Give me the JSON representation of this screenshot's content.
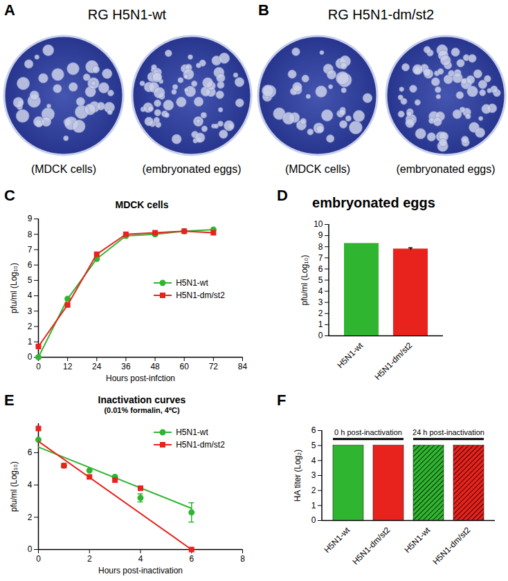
{
  "images": [
    {
      "panel": "A",
      "title": "RG H5N1-wt",
      "captions": [
        "(MDCK cells)",
        "(embryonated eggs)"
      ]
    },
    {
      "panel": "B",
      "title": "RG H5N1-dm/st2",
      "captions": [
        "(MDCK cells)",
        "(embryonated eggs)"
      ]
    }
  ],
  "chart_data": [
    {
      "panel": "C",
      "type": "line",
      "title": "MDCK cells",
      "x": [
        0,
        12,
        24,
        36,
        48,
        60,
        72
      ],
      "series": [
        {
          "name": "H5N1-wt",
          "color": "#2fb52f",
          "marker": "circle",
          "values": [
            0,
            3.8,
            6.4,
            7.9,
            8.0,
            8.2,
            8.3
          ]
        },
        {
          "name": "H5N1-dm/st2",
          "color": "#e8221c",
          "marker": "square",
          "values": [
            0.7,
            3.4,
            6.7,
            8.0,
            8.1,
            8.2,
            8.1
          ]
        }
      ],
      "xlabel": "Hours post-infction",
      "ylabel": "pfu/ml (Log₁₀)",
      "xlim": [
        0,
        84
      ],
      "xticks": [
        0,
        12,
        24,
        36,
        48,
        60,
        72,
        84
      ],
      "ylim": [
        0,
        9
      ],
      "yticks": [
        0,
        1,
        2,
        3,
        4,
        5,
        6,
        7,
        8,
        9
      ],
      "legend": "right"
    },
    {
      "panel": "D",
      "type": "bar",
      "title": "embryonated eggs",
      "categories": [
        "H5N1-wt",
        "H5N1-dm/st2"
      ],
      "values": [
        8.3,
        7.8
      ],
      "errors": [
        null,
        0.1
      ],
      "colors": [
        "#2fb52f",
        "#e8221c"
      ],
      "ylabel": "pfu/ml (Log₁₀)",
      "ylim": [
        0,
        10
      ],
      "yticks": [
        0,
        1,
        2,
        3,
        4,
        5,
        6,
        7,
        8,
        9,
        10
      ]
    },
    {
      "panel": "E",
      "type": "scatter",
      "title": "Inactivation curves",
      "subtitle": "(0.01% formalin, 4ºC)",
      "x": [
        0,
        1,
        2,
        3,
        4,
        6
      ],
      "series": [
        {
          "name": "H5N1-wt",
          "color": "#2fb52f",
          "marker": "circle",
          "values": [
            6.8,
            5.2,
            4.9,
            4.5,
            3.2,
            2.3
          ],
          "errors": [
            null,
            null,
            null,
            null,
            0.25,
            0.6
          ],
          "fit": {
            "x": [
              0,
              6
            ],
            "values": [
              6.35,
              2.55
            ]
          }
        },
        {
          "name": "H5N1-dm/st2",
          "color": "#e8221c",
          "marker": "square",
          "values": [
            7.5,
            5.2,
            4.5,
            4.3,
            3.8,
            0
          ],
          "errors": [
            null,
            null,
            null,
            null,
            null,
            null
          ],
          "fit": {
            "x": [
              0,
              6
            ],
            "values": [
              6.7,
              0
            ]
          }
        }
      ],
      "xlabel": "Hours post-inactivation",
      "ylabel": "pfu/ml (Log₁₀)",
      "xlim": [
        0,
        8
      ],
      "xticks": [
        0,
        2,
        4,
        6,
        8
      ],
      "ylim": [
        0,
        7.8
      ],
      "yticks": [
        0,
        2,
        4,
        6
      ],
      "legend": "upper right"
    },
    {
      "panel": "F",
      "type": "bar",
      "categories": [
        "H5N1-wt",
        "H5N1-dm/st2"
      ],
      "series": [
        {
          "name": "0 h post-inactivation",
          "colors": [
            "#2fb52f",
            "#e8221c"
          ],
          "values": [
            5,
            5
          ]
        },
        {
          "name": "24 h post-inactivation",
          "colors": [
            "#2fb52f",
            "#e8221c"
          ],
          "values": [
            5,
            5
          ]
        }
      ],
      "ylabel": "HA titer (Log₂)",
      "ylim": [
        0,
        6
      ],
      "yticks": [
        0,
        1,
        2,
        3,
        4,
        5,
        6
      ]
    }
  ]
}
